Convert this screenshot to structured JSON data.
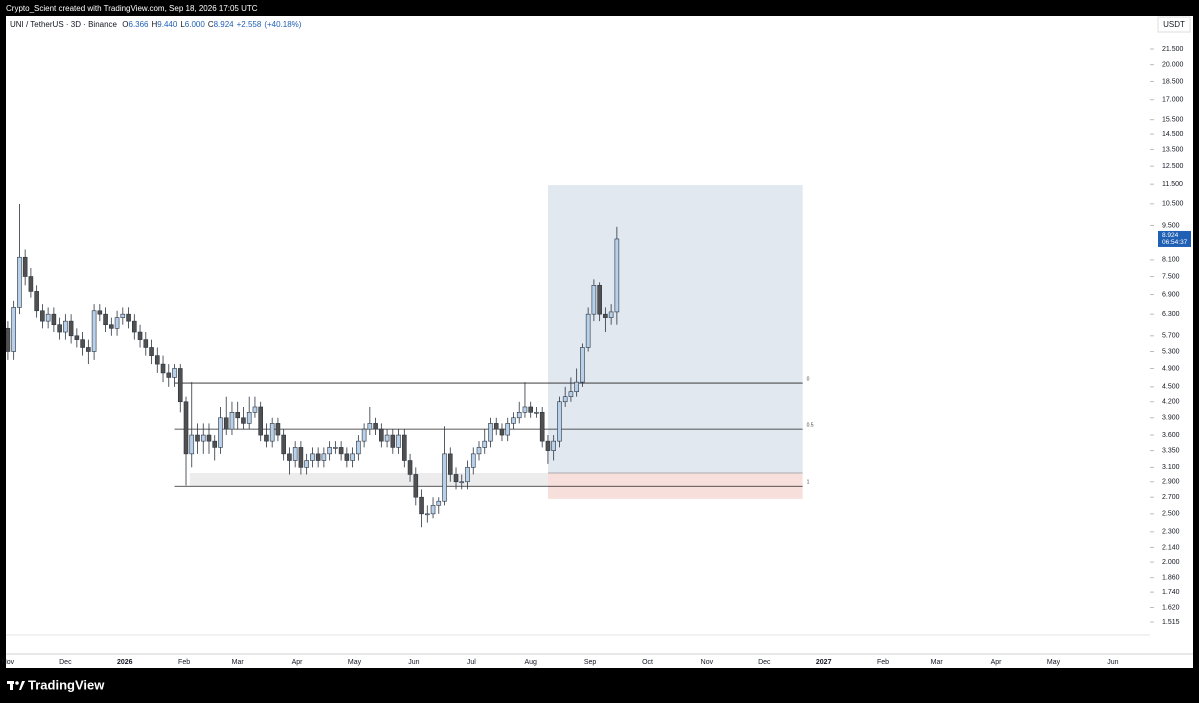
{
  "top_bar": "Crypto_Scient created with TradingView.com, Sep 18, 2026 17:05 UTC",
  "footer": "TradingView",
  "chart_data": {
    "type": "candlestick",
    "symbol": "UNI / TetherUS · 3D · Binance",
    "ohlc_readout": {
      "labels": [
        "O",
        "H",
        "L",
        "C"
      ],
      "values": [
        6.366,
        {
          "value": 9.44,
          "label": "9.440"
        },
        {
          "value": 6,
          "label": "6.000"
        },
        8.924
      ],
      "change": {
        "value": 2.558,
        "label": "+2.558"
      },
      "change_pct": {
        "value": 40.18,
        "label": "(+40.18%)"
      }
    },
    "currency": "USDT",
    "countdown": "06:54:37",
    "log_scale": true,
    "grid": false,
    "up_color": "#b8d0ea",
    "down_color": "#505050",
    "edge_color": "#2a3440",
    "accent_color": "#1f5fb4",
    "x": [
      0,
      3,
      6,
      9,
      12,
      15,
      18,
      21,
      24,
      27,
      30,
      33,
      36,
      39,
      42,
      45,
      48,
      51,
      54,
      57,
      60,
      63,
      66,
      69,
      72,
      75,
      78,
      81,
      84,
      87,
      90,
      93,
      96,
      99,
      102,
      105,
      108,
      111,
      114,
      117,
      120,
      123,
      126,
      129,
      132,
      135,
      138,
      141,
      144,
      147,
      150,
      153,
      156,
      159,
      162,
      165,
      168,
      171,
      174,
      177,
      180,
      183,
      186,
      189,
      192,
      195,
      198,
      201,
      204,
      207,
      210,
      213,
      216,
      219,
      222,
      225,
      228,
      231,
      234,
      237,
      240,
      243,
      246,
      249,
      252,
      255,
      258,
      261,
      264,
      267,
      270,
      273,
      276,
      279,
      282,
      285,
      288,
      291,
      294,
      297,
      300,
      303,
      306,
      309,
      312,
      315,
      318
    ],
    "open": [
      5.9,
      5.3,
      6.5,
      8.2,
      7.5,
      7.0,
      6.4,
      6.1,
      6.3,
      6.0,
      5.8,
      6.1,
      5.7,
      5.6,
      5.4,
      5.3,
      6.4,
      6.3,
      6.0,
      5.9,
      6.2,
      6.3,
      6.1,
      5.8,
      5.6,
      5.4,
      5.2,
      5.0,
      4.8,
      4.7,
      4.9,
      4.2,
      3.3,
      3.6,
      3.5,
      3.6,
      3.5,
      3.4,
      3.9,
      3.7,
      4.0,
      3.9,
      3.8,
      4.0,
      4.1,
      3.6,
      3.5,
      3.8,
      3.6,
      3.3,
      3.2,
      3.4,
      3.1,
      3.2,
      3.3,
      3.2,
      3.3,
      3.4,
      3.4,
      3.3,
      3.2,
      3.3,
      3.5,
      3.7,
      3.8,
      3.7,
      3.5,
      3.6,
      3.4,
      3.6,
      3.2,
      3.0,
      2.7,
      2.5,
      2.5,
      2.6,
      2.65,
      3.3,
      3.0,
      2.9,
      2.9,
      3.1,
      3.3,
      3.4,
      3.5,
      3.8,
      3.7,
      3.6,
      3.8,
      3.9,
      4.0,
      4.1,
      4.0,
      4.0,
      3.5,
      3.35,
      3.5,
      4.2,
      4.3,
      4.4,
      4.6,
      5.4,
      6.3,
      7.2,
      6.3,
      6.2,
      6.366
    ],
    "high": [
      6.1,
      6.7,
      10.5,
      8.5,
      7.8,
      7.2,
      6.6,
      6.5,
      6.5,
      6.2,
      6.3,
      6.3,
      5.9,
      5.8,
      5.6,
      6.6,
      6.6,
      6.5,
      6.2,
      6.4,
      6.5,
      6.5,
      6.3,
      6.0,
      5.8,
      5.6,
      5.4,
      5.2,
      5.0,
      5.0,
      5.0,
      4.3,
      4.6,
      3.8,
      3.8,
      3.8,
      3.6,
      4.1,
      4.3,
      4.2,
      4.2,
      4.1,
      4.3,
      4.3,
      4.2,
      3.8,
      3.9,
      3.9,
      3.7,
      3.4,
      3.5,
      3.5,
      3.3,
      3.4,
      3.4,
      3.4,
      3.5,
      3.5,
      3.5,
      3.4,
      3.4,
      3.6,
      3.8,
      4.1,
      3.9,
      3.8,
      3.7,
      3.7,
      3.7,
      3.7,
      3.3,
      3.1,
      2.8,
      2.6,
      2.7,
      2.7,
      3.75,
      3.4,
      3.1,
      3.0,
      3.2,
      3.4,
      3.5,
      3.7,
      3.9,
      3.9,
      3.8,
      3.9,
      4.0,
      4.2,
      4.6,
      4.2,
      4.1,
      4.1,
      3.6,
      3.6,
      4.3,
      4.5,
      4.7,
      4.9,
      5.5,
      6.5,
      7.4,
      7.3,
      6.5,
      6.6,
      9.44
    ],
    "low": [
      5.1,
      5.1,
      6.3,
      7.2,
      6.8,
      6.2,
      5.9,
      5.9,
      5.8,
      5.6,
      5.6,
      5.5,
      5.4,
      5.2,
      5.0,
      5.1,
      6.1,
      5.8,
      5.7,
      5.7,
      6.0,
      5.9,
      5.6,
      5.4,
      5.2,
      5.0,
      4.8,
      4.6,
      4.5,
      4.5,
      4.0,
      2.85,
      3.1,
      3.3,
      3.3,
      3.3,
      3.2,
      3.3,
      3.6,
      3.6,
      3.7,
      3.7,
      3.7,
      3.9,
      3.5,
      3.4,
      3.4,
      3.5,
      3.2,
      3.0,
      3.1,
      3.0,
      3.0,
      3.1,
      3.1,
      3.1,
      3.2,
      3.3,
      3.2,
      3.1,
      3.1,
      3.2,
      3.4,
      3.6,
      3.6,
      3.4,
      3.4,
      3.3,
      3.3,
      3.1,
      2.9,
      2.6,
      2.35,
      2.4,
      2.45,
      2.5,
      2.6,
      2.9,
      2.8,
      2.8,
      2.8,
      3.0,
      3.2,
      3.3,
      3.4,
      3.6,
      3.5,
      3.5,
      3.7,
      3.8,
      3.9,
      3.9,
      3.9,
      3.4,
      3.15,
      3.2,
      3.4,
      4.1,
      4.2,
      4.3,
      4.5,
      5.3,
      6.1,
      6.1,
      5.8,
      6.0,
      6.0
    ],
    "close": [
      5.3,
      6.5,
      8.2,
      7.5,
      7.0,
      6.4,
      6.1,
      6.3,
      6.0,
      5.8,
      6.1,
      5.7,
      5.6,
      5.4,
      5.3,
      6.4,
      6.3,
      6.0,
      5.9,
      6.2,
      6.3,
      6.1,
      5.8,
      5.6,
      5.4,
      5.2,
      5.0,
      4.8,
      4.7,
      4.9,
      4.2,
      3.3,
      3.6,
      3.5,
      3.6,
      3.5,
      3.4,
      3.9,
      3.7,
      4.0,
      3.9,
      3.8,
      4.0,
      4.1,
      3.6,
      3.5,
      3.8,
      3.6,
      3.3,
      3.2,
      3.4,
      3.1,
      3.2,
      3.3,
      3.2,
      3.3,
      3.4,
      3.4,
      3.3,
      3.2,
      3.3,
      3.5,
      3.7,
      3.8,
      3.7,
      3.5,
      3.6,
      3.4,
      3.6,
      3.2,
      3.0,
      2.7,
      2.5,
      2.5,
      2.6,
      2.65,
      3.3,
      3.0,
      2.9,
      2.9,
      3.1,
      3.3,
      3.4,
      3.5,
      3.8,
      3.7,
      3.6,
      3.8,
      3.9,
      4.0,
      4.1,
      4.0,
      4.0,
      3.5,
      3.35,
      3.5,
      4.2,
      4.3,
      4.4,
      4.6,
      5.4,
      6.3,
      7.2,
      6.3,
      6.2,
      6.366,
      8.924
    ],
    "ylim": [
      1.331,
      25.05
    ],
    "yticks": [
      {
        "value": 21.5,
        "label": "21.500"
      },
      {
        "value": 20,
        "label": "20.000"
      },
      {
        "value": 18.5,
        "label": "18.500"
      },
      {
        "value": 17,
        "label": "17.000"
      },
      {
        "value": 15.5,
        "label": "15.500"
      },
      {
        "value": 14.5,
        "label": "14.500"
      },
      {
        "value": 13.5,
        "label": "13.500"
      },
      {
        "value": 12.5,
        "label": "12.500"
      },
      {
        "value": 11.5,
        "label": "11.500"
      },
      {
        "value": 10.5,
        "label": "10.500"
      },
      {
        "value": 9.5,
        "label": "9.500"
      },
      {
        "value": 8.1,
        "label": "8.100"
      },
      {
        "value": 7.5,
        "label": "7.500"
      },
      {
        "value": 6.9,
        "label": "6.900"
      },
      {
        "value": 6.3,
        "label": "6.300"
      },
      {
        "value": 5.7,
        "label": "5.700"
      },
      {
        "value": 5.3,
        "label": "5.300"
      },
      {
        "value": 4.9,
        "label": "4.900"
      },
      {
        "value": 4.5,
        "label": "4.500"
      },
      {
        "value": 4.2,
        "label": "4.200"
      },
      {
        "value": 3.9,
        "label": "3.900"
      },
      {
        "value": 3.6,
        "label": "3.600"
      },
      {
        "value": 3.35,
        "label": "3.350"
      },
      {
        "value": 3.1,
        "label": "3.100"
      },
      {
        "value": 2.9,
        "label": "2.900"
      },
      {
        "value": 2.7,
        "label": "2.700"
      },
      {
        "value": 2.5,
        "label": "2.500"
      },
      {
        "value": 2.3,
        "label": "2.300"
      },
      {
        "value": 2.14,
        "label": "2.140"
      },
      {
        "value": 2,
        "label": "2.000"
      },
      {
        "value": 1.86,
        "label": "1.860"
      },
      {
        "value": 1.74,
        "label": "1.740"
      },
      {
        "value": 1.62,
        "label": "1.620"
      },
      {
        "value": 1.515,
        "label": "1.515"
      }
    ],
    "xlim": [
      -1,
      596.4
    ],
    "xticks": [
      {
        "value": 0,
        "label": "Nov"
      },
      {
        "value": 30,
        "label": "Dec"
      },
      {
        "value": 61,
        "label": "2026"
      },
      {
        "value": 92,
        "label": "Feb"
      },
      {
        "value": 120,
        "label": "Mar"
      },
      {
        "value": 151,
        "label": "Apr"
      },
      {
        "value": 181,
        "label": "May"
      },
      {
        "value": 212,
        "label": "Jun"
      },
      {
        "value": 242,
        "label": "Jul"
      },
      {
        "value": 273,
        "label": "Aug"
      },
      {
        "value": 304,
        "label": "Sep"
      },
      {
        "value": 334,
        "label": "Oct"
      },
      {
        "value": 365,
        "label": "Nov"
      },
      {
        "value": 395,
        "label": "Dec"
      },
      {
        "value": 426,
        "label": "2027"
      },
      {
        "value": 457,
        "label": "Feb"
      },
      {
        "value": 485,
        "label": "Mar"
      },
      {
        "value": 516,
        "label": "Apr"
      },
      {
        "value": 546,
        "label": "May"
      },
      {
        "value": 577,
        "label": "Jun"
      }
    ],
    "fib": {
      "x": [
        87,
        415
      ],
      "levels": [
        {
          "value": 4.58,
          "label": "0"
        },
        {
          "value": 3.7,
          "label": "0.5"
        },
        {
          "value": 2.84,
          "label": "1"
        }
      ]
    },
    "zone": {
      "x": [
        95,
        282
      ],
      "y": [
        2.84,
        3.02
      ]
    },
    "position": {
      "x": [
        282,
        415
      ],
      "entry": 3.02,
      "target": 11.45,
      "stop": 2.68
    }
  }
}
